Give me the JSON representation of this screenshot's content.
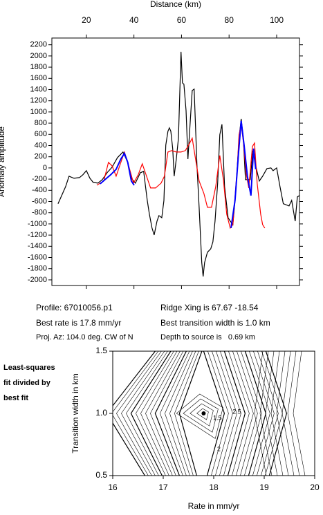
{
  "chart_data": [
    {
      "type": "line",
      "x_label": "Distance (km)",
      "y_label": "Anomaly amplitude",
      "xlim": [
        5.5,
        109.6
      ],
      "xticks": [
        20,
        40,
        60,
        80,
        100
      ],
      "ylim": [
        -2100,
        2320
      ],
      "yticks": [
        -2000,
        -1800,
        -1600,
        -1400,
        -1200,
        -1000,
        -800,
        -600,
        -400,
        -200,
        0,
        200,
        400,
        600,
        800,
        1000,
        1200,
        1400,
        1600,
        1800,
        2000,
        2200
      ],
      "series": [
        {
          "color": "#000000",
          "x": [
            8.1,
            11.3,
            12.7,
            14.8,
            17.1,
            18.5,
            20,
            21.5,
            22.9,
            24.9,
            26.7,
            28.7,
            30.8,
            33.1,
            35.4,
            37.4,
            38.9,
            40.6,
            42.7,
            44.1,
            45.6,
            46.5,
            47.6,
            48.5,
            49.7,
            50.5,
            51.7,
            52.6,
            53.4,
            54.3,
            54.9,
            55.5,
            56.3,
            56.9,
            57.8,
            58.7,
            59.8,
            60.4,
            61.0,
            61.9,
            62.7,
            63.6,
            64.5,
            65.3,
            66.5,
            67.4,
            68.5,
            69.1,
            69.7,
            70.9,
            72.3,
            73.2,
            74.1,
            75.2,
            76.1,
            77,
            78.1,
            79.6,
            80.5,
            81.6,
            82.5,
            83.4,
            84.2,
            85.1,
            86,
            86.9,
            87.7,
            88.9,
            90,
            91.2,
            92.7,
            94.1,
            95.9,
            97.6,
            98.5,
            100,
            101.4,
            102.8,
            105.2,
            106.3,
            107.8,
            108.7,
            109.6
          ],
          "values": [
            -640,
            -333,
            -148,
            -185,
            -173,
            -123,
            -49,
            -185,
            -259,
            -272,
            -210,
            -86,
            12,
            185,
            284,
            99,
            -185,
            -272,
            -86,
            -62,
            -580,
            -827,
            -1074,
            -1198,
            -951,
            -852,
            -889,
            -580,
            407,
            654,
            716,
            654,
            346,
            -148,
            160,
            531,
            2074,
            1519,
            1494,
            1025,
            160,
            778,
            1383,
            1407,
            37,
            -704,
            -1691,
            -1938,
            -1691,
            -1506,
            -1444,
            -1321,
            -951,
            -272,
            593,
            778,
            -333,
            -889,
            -951,
            -1012,
            -580,
            -25,
            531,
            877,
            531,
            -210,
            -210,
            -210,
            309,
            37,
            -235,
            -148,
            -12,
            0,
            -49,
            0,
            -333,
            -640,
            -679,
            -580,
            -951,
            -519,
            -494
          ]
        },
        {
          "color": "#ff0000",
          "x": [
            24.4,
            27.3,
            29.3,
            30.8,
            32.5,
            34,
            36,
            37.4,
            39.8,
            41.8,
            43.5,
            45.3,
            47,
            49.1,
            51.4,
            52.8,
            54.3,
            55.8,
            57.8,
            59.8,
            61.6,
            63,
            64.5,
            65.9,
            67.4,
            69.4,
            70.9,
            72.6,
            74.4,
            76.1,
            77.6,
            79,
            80.5,
            81.6,
            83.4,
            84.2,
            85.1,
            86,
            87.2,
            88.3,
            89.8,
            90.7,
            91.8,
            93.3,
            94.1,
            95
          ],
          "values": [
            -309,
            -235,
            99,
            37,
            -148,
            37,
            284,
            99,
            -272,
            -123,
            74,
            -148,
            -358,
            -358,
            -272,
            -148,
            284,
            309,
            284,
            284,
            309,
            407,
            531,
            160,
            -235,
            -457,
            -704,
            -704,
            -333,
            222,
            -210,
            -827,
            -1074,
            -1012,
            -25,
            593,
            778,
            469,
            -111,
            -358,
            383,
            444,
            -272,
            -827,
            -1012,
            -1074
          ]
        },
        {
          "color": "#0000ff",
          "x": [
            25.8,
            27.8,
            30.2,
            32.5,
            34.5,
            36,
            37.4,
            38.9,
            40.1
          ],
          "values": [
            -284,
            -210,
            -123,
            -25,
            160,
            259,
            99,
            -235,
            -309
          ]
        },
        {
          "color": "#0000ff",
          "x": [
            80.8,
            82.5,
            84,
            85.1,
            86.3,
            87.7,
            89.2,
            90.3,
            91.2
          ],
          "values": [
            -1074,
            -580,
            284,
            840,
            407,
            -148,
            -494,
            346,
            -25
          ]
        }
      ]
    },
    {
      "type": "contour",
      "x_label": "Rate in mm/yr",
      "y_label": "Transition width in km",
      "xlim": [
        16,
        20
      ],
      "xticks": [
        16,
        17,
        18,
        19,
        20
      ],
      "ylim": [
        0.5,
        1.5
      ],
      "yticks": [
        0.5,
        {
          "value": 1,
          "label": "1.0"
        },
        1.5
      ],
      "points": {
        "x": [
          17.8
        ],
        "y": [
          1.0
        ]
      },
      "contour_labels": [
        1.5,
        2.5,
        2
      ]
    }
  ],
  "info": {
    "profile": "Profile: 67010056.p1",
    "ridge": "Ridge Xing is 67.67 -18.54",
    "rate": "Best rate is 17.8 mm/yr",
    "width": "Best transition width is 1.0 km",
    "azimuth": "Proj. Az: 104.0 deg. CW of N",
    "depth": "Depth to source is   0.69 km"
  },
  "side_label": [
    "Least-squares",
    "fit divided by",
    "best fit"
  ]
}
